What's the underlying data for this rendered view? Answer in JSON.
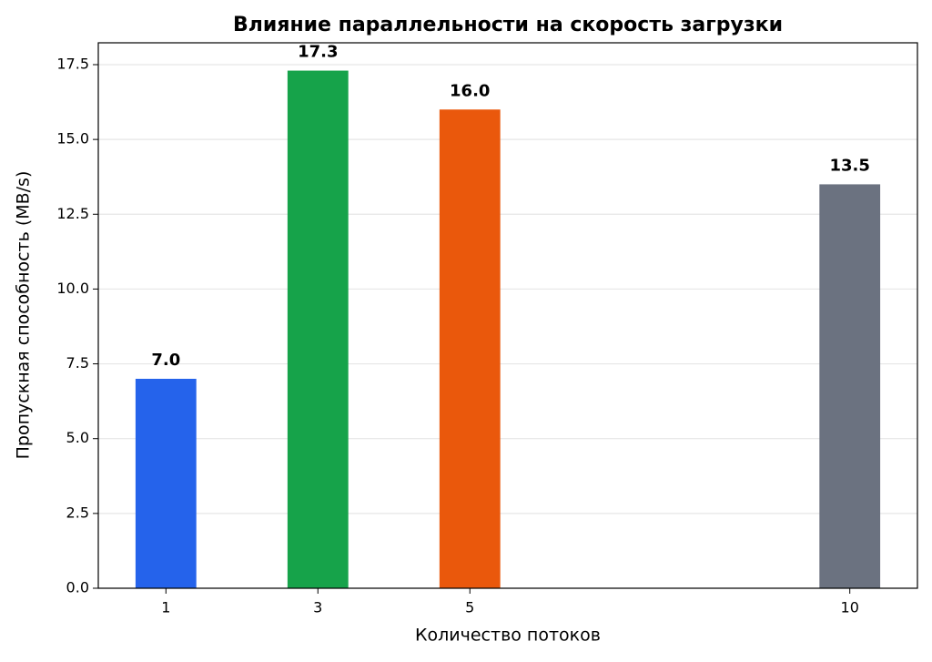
{
  "chart_data": {
    "type": "bar",
    "title": "Влияние параллельности на скорость загрузки",
    "xlabel": "Количество потоков",
    "ylabel": "Пропускная способность (MB/s)",
    "x": [
      1,
      3,
      5,
      10
    ],
    "values": [
      7.0,
      17.3,
      16.0,
      13.5
    ],
    "value_labels": [
      "7.0",
      "17.3",
      "16.0",
      "13.5"
    ],
    "colors": [
      "#2563eb",
      "#16a34a",
      "#ea580c",
      "#6b7280"
    ],
    "bar_width": 0.8,
    "xlim": [
      0.11,
      10.89
    ],
    "xticks": [
      1,
      3,
      5,
      10
    ],
    "ylim": [
      0,
      18.23
    ],
    "yticks": [
      {
        "value": 0,
        "label": "0.0"
      },
      {
        "value": 2.5,
        "label": "2.5"
      },
      {
        "value": 5,
        "label": "5.0"
      },
      {
        "value": 7.5,
        "label": "7.5"
      },
      {
        "value": 10,
        "label": "10.0"
      },
      {
        "value": 12.5,
        "label": "12.5"
      },
      {
        "value": 15,
        "label": "15.0"
      },
      {
        "value": 17.5,
        "label": "17.5"
      }
    ],
    "grid": true
  }
}
